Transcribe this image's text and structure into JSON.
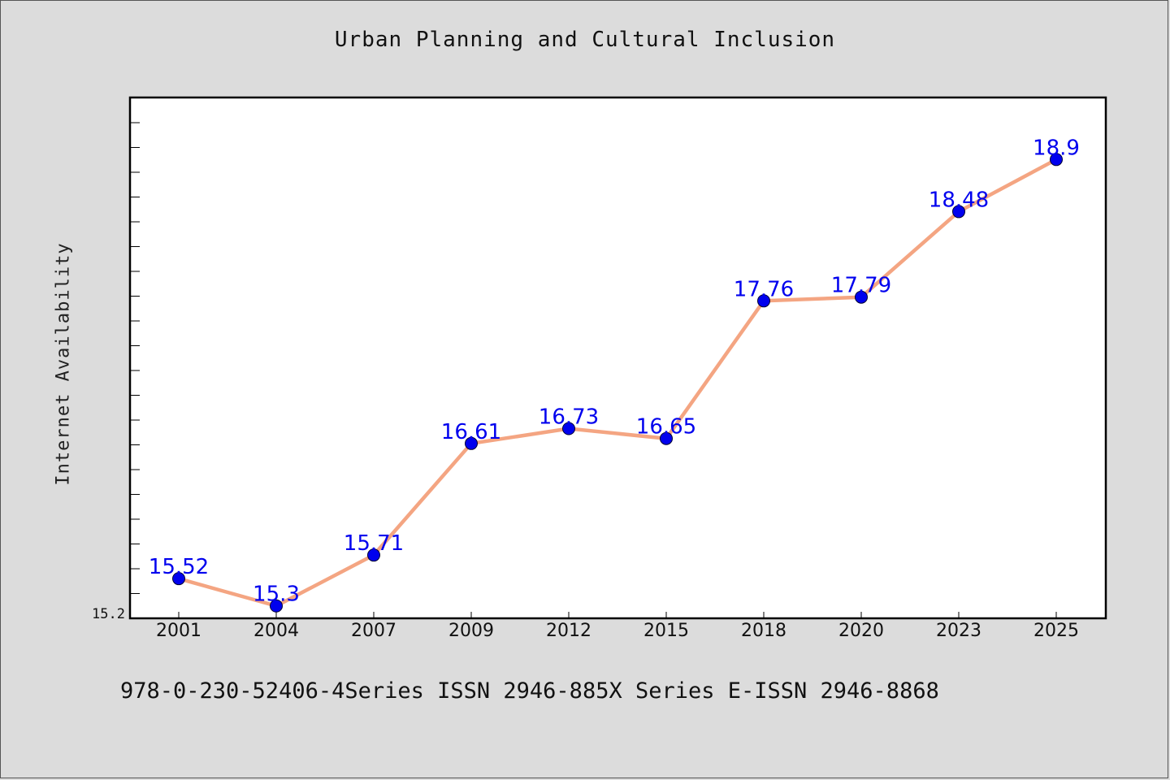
{
  "page": {
    "title": "Urban Planning and Cultural Inclusion",
    "footer": "978-0-230-52406-4Series ISSN 2946-885X Series E-ISSN 2946-8868"
  },
  "chart_data": {
    "type": "line",
    "title": "Urban Planning and Cultural Inclusion",
    "xlabel": "",
    "ylabel": "Internet Availability",
    "categories": [
      "2001",
      "2004",
      "2007",
      "2009",
      "2012",
      "2015",
      "2018",
      "2020",
      "2023",
      "2025"
    ],
    "series": [
      {
        "values": [
          15.52,
          15.3,
          15.71,
          16.61,
          16.73,
          16.65,
          17.76,
          17.79,
          18.48,
          18.9
        ],
        "data_labels": [
          "15.52",
          "15.3",
          "15.71",
          "16.61",
          "16.73",
          "16.65",
          "17.76",
          "17.79",
          "18.48",
          "18.9"
        ],
        "line_color": "#f4a582",
        "marker_color": "#0000ee"
      }
    ],
    "y_tick_labels": [
      {
        "value": 15.2,
        "label": "15.2"
      }
    ],
    "ylim": [
      15.2,
      19.4
    ],
    "grid": false,
    "legend": "none",
    "colors": {
      "line": "#f4a582",
      "marker": "#0000ee",
      "data_label": "#0000ee",
      "plot_background": "#ffffff",
      "figure_background": "#dcdcdc"
    }
  }
}
